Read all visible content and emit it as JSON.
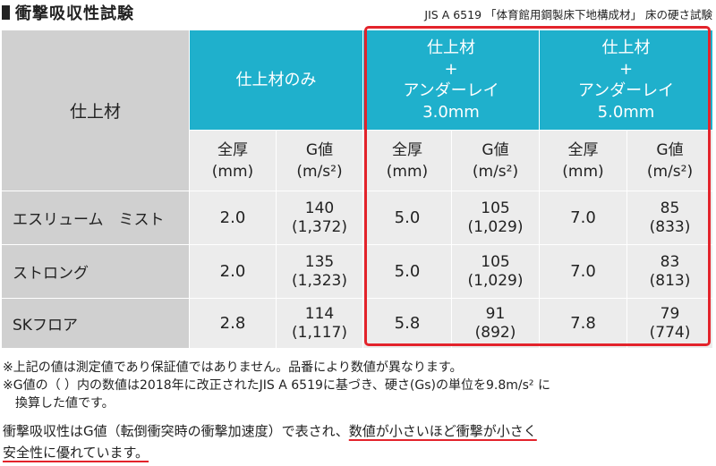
{
  "header": {
    "title": "衝撃吸収性試験",
    "standard": "JIS A 6519 「体育館用鋼製床下地構成材」 床の硬さ試験"
  },
  "table": {
    "row_header": "仕上材",
    "groups": [
      {
        "lines": [
          "仕上材のみ"
        ]
      },
      {
        "lines": [
          "仕上材",
          "+",
          "アンダーレイ",
          "3.0mm"
        ]
      },
      {
        "lines": [
          "仕上材",
          "+",
          "アンダーレイ",
          "5.0mm"
        ]
      }
    ],
    "subheaders": {
      "thickness": [
        "全厚",
        "(mm)"
      ],
      "gvalue": [
        "G値",
        "(m/s²)"
      ]
    },
    "rows": [
      {
        "name": "エスリューム　ミスト",
        "cells": [
          [
            "2.0"
          ],
          [
            "140",
            "(1,372)"
          ],
          [
            "5.0"
          ],
          [
            "105",
            "(1,029)"
          ],
          [
            "7.0"
          ],
          [
            "85",
            "(833)"
          ]
        ]
      },
      {
        "name": "ストロング",
        "cells": [
          [
            "2.0"
          ],
          [
            "135",
            "(1,323)"
          ],
          [
            "5.0"
          ],
          [
            "105",
            "(1,029)"
          ],
          [
            "7.0"
          ],
          [
            "83",
            "(813)"
          ]
        ]
      },
      {
        "name": "SKフロア",
        "cells": [
          [
            "2.8"
          ],
          [
            "114",
            "(1,117)"
          ],
          [
            "5.8"
          ],
          [
            "91",
            "(892)"
          ],
          [
            "7.8"
          ],
          [
            "79",
            "(774)"
          ]
        ]
      }
    ]
  },
  "notes": [
    "※上記の値は測定値であり保証値ではありません。品番により数値が異なります。",
    "※G値の（ ）内の数値は2018年に改正されたJIS A 6519に基づき、硬さ(Gs)の単位を9.8m/s² に",
    "換算した値です。"
  ],
  "summary": {
    "part1": "衝撃吸収性はG値（転倒衝突時の衝撃加速度）で表され、",
    "part2": "数値が小さいほど衝撃が小さく",
    "part3": "安全性に優れています。"
  },
  "colors": {
    "teal": "#1fb0cc",
    "header_gray": "#d0d0d0",
    "cell_gray": "#ececec",
    "highlight_red": "#e3232b"
  }
}
